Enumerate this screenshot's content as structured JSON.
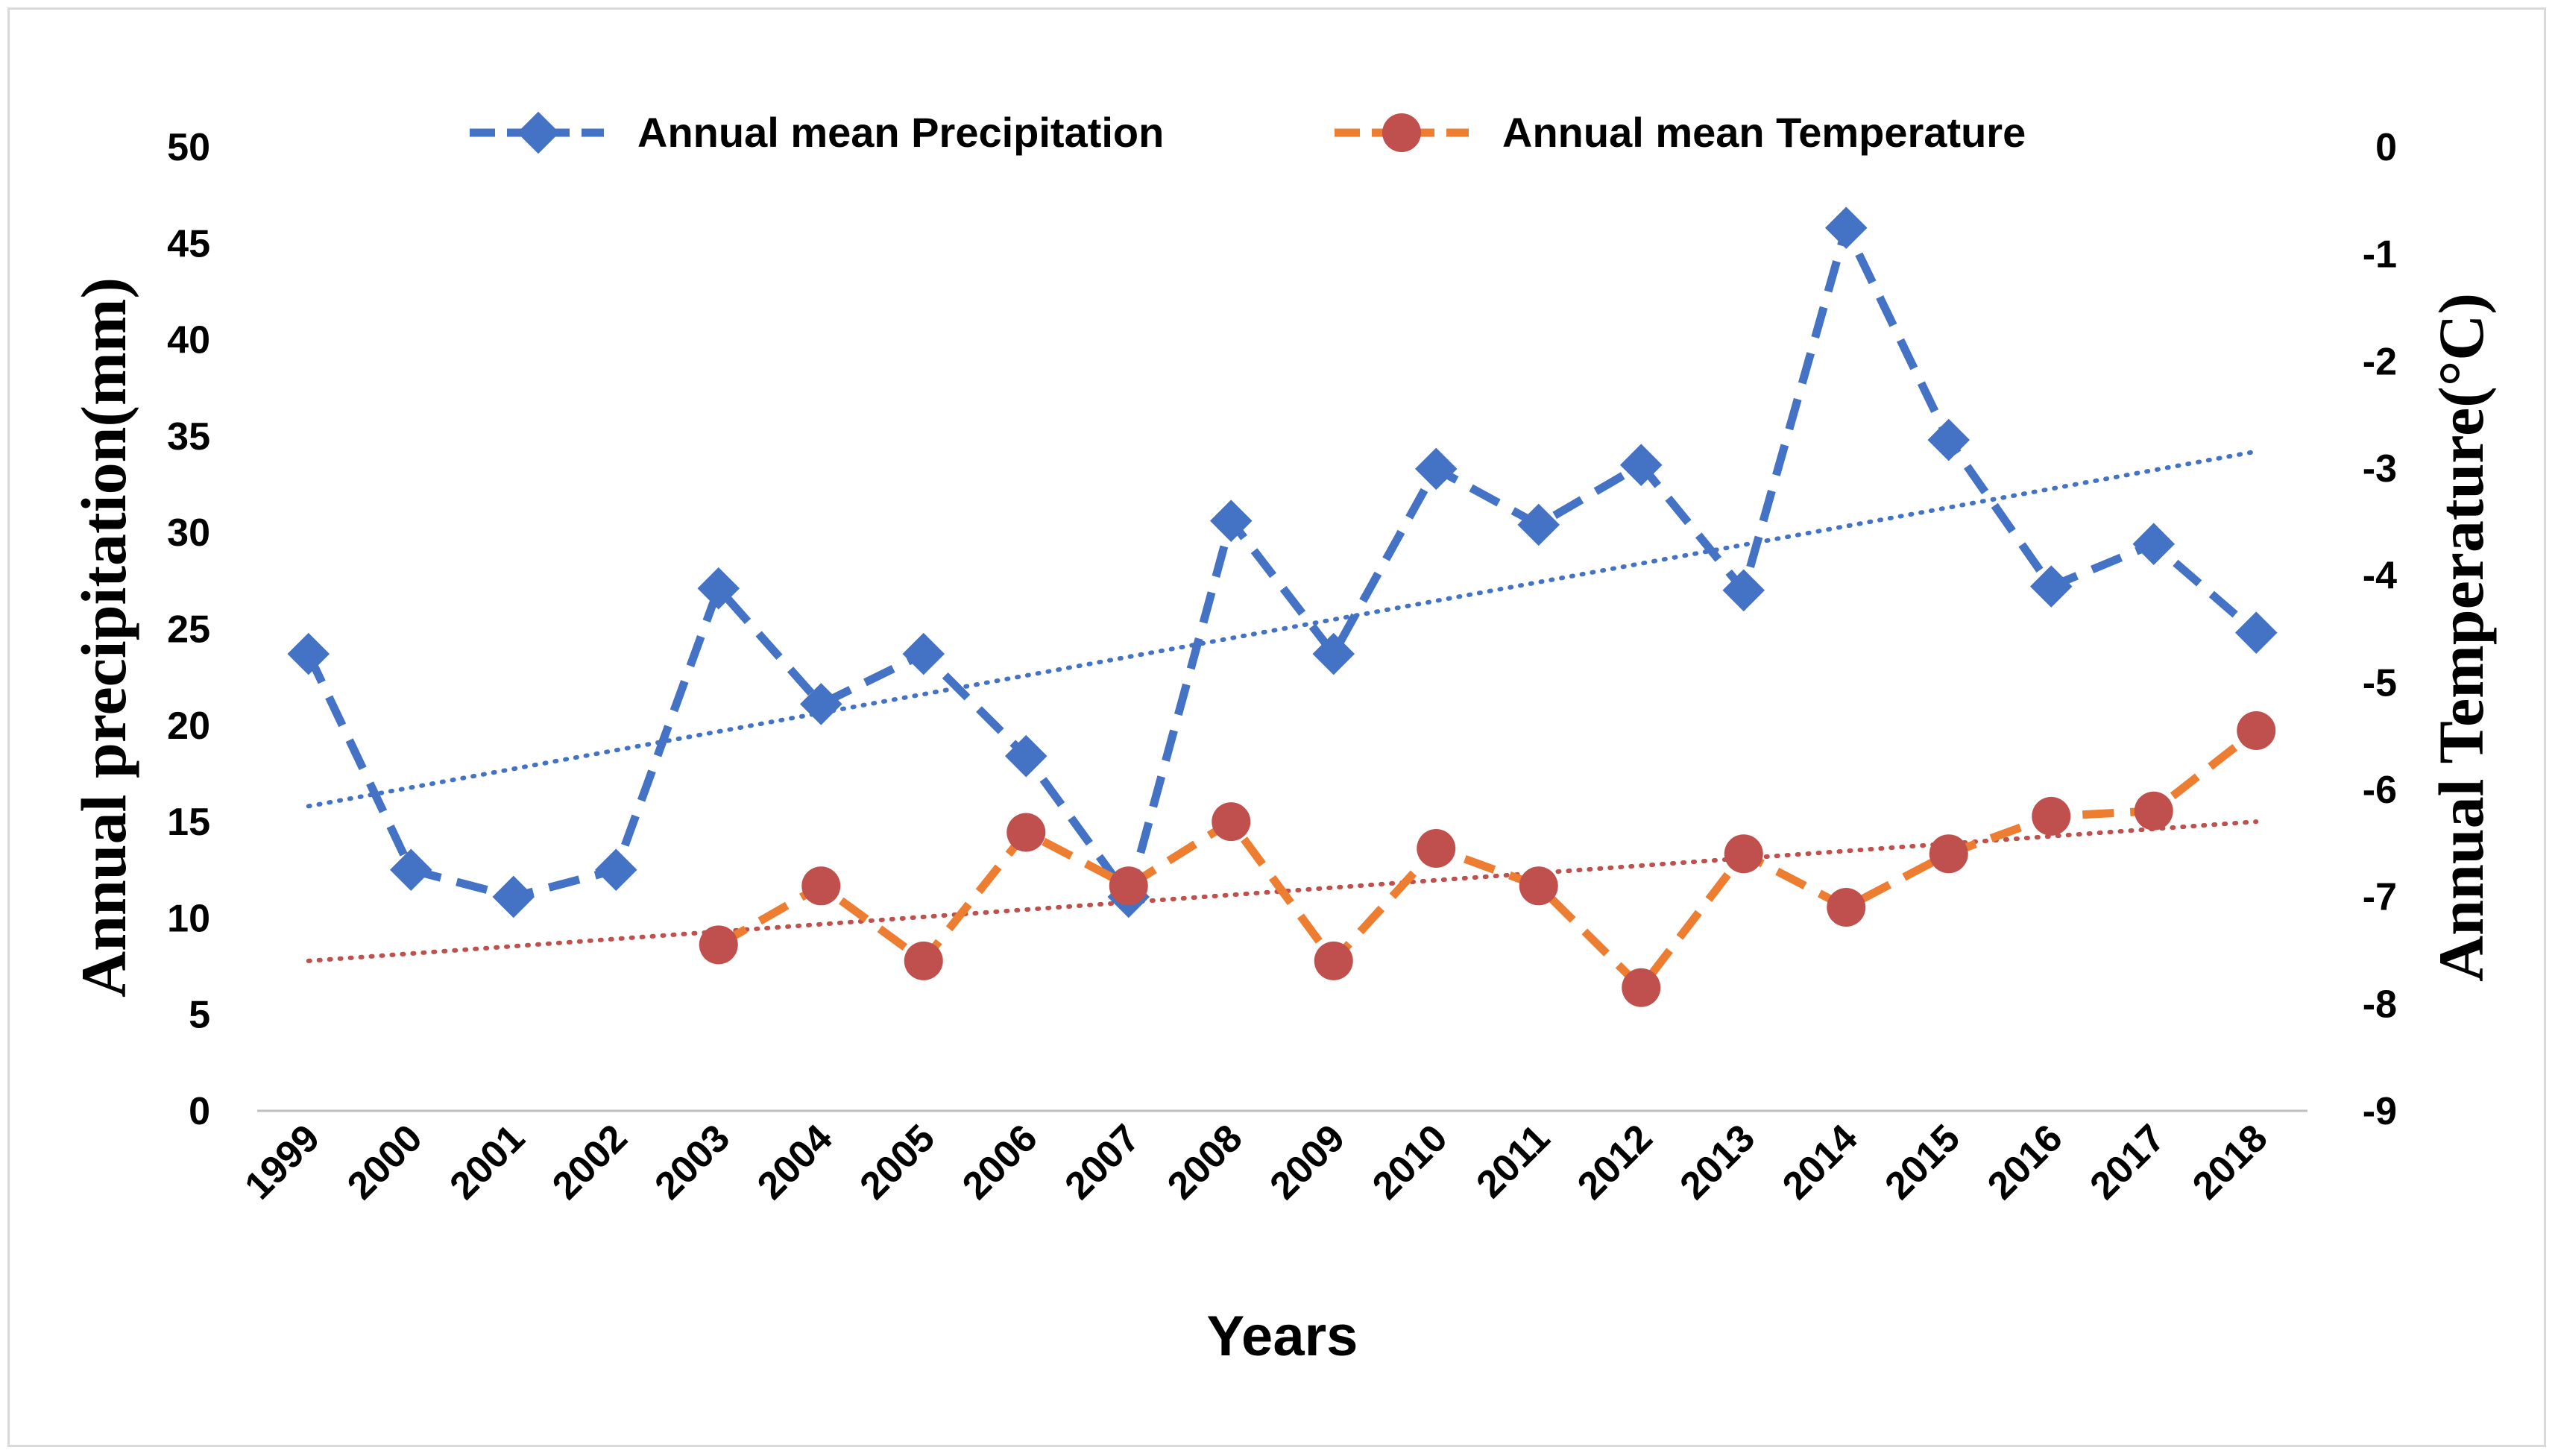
{
  "chart_data": {
    "type": "line",
    "title": "",
    "xlabel": "Years",
    "ylabel": "Annual precipitation(mm)",
    "y2label": "Annual Temperature(°C)",
    "ylim": [
      0,
      50
    ],
    "y2lim": [
      -9,
      0
    ],
    "yticks": [
      "0",
      "5",
      "10",
      "15",
      "20",
      "25",
      "30",
      "35",
      "40",
      "45",
      "50"
    ],
    "y2ticks": [
      "0",
      "-1",
      "-2",
      "-3",
      "-4",
      "-5",
      "-6",
      "-7",
      "-8",
      "-9"
    ],
    "categories": [
      "1999",
      "2000",
      "2001",
      "2002",
      "2003",
      "2004",
      "2005",
      "2006",
      "2007",
      "2008",
      "2009",
      "2010",
      "2011",
      "2012",
      "2013",
      "2014",
      "2015",
      "2016",
      "2017",
      "2018"
    ],
    "legend_position": "top-center",
    "series": [
      {
        "name": "Annual mean Precipitation",
        "axis": "left",
        "color": "#4472c4",
        "marker": "diamond",
        "values": [
          23.7,
          12.5,
          11.1,
          12.5,
          27.1,
          21.1,
          23.7,
          18.4,
          11.1,
          30.6,
          23.7,
          33.3,
          30.4,
          33.5,
          27.0,
          45.8,
          34.8,
          27.2,
          29.4,
          24.8
        ],
        "trend": {
          "color": "#4472c4",
          "start": 15.8,
          "end": 34.2
        }
      },
      {
        "name": "Annual mean Temperature",
        "axis": "right",
        "color": "#ed7d31",
        "marker_color": "#c0504d",
        "marker": "circle",
        "values": [
          null,
          null,
          null,
          null,
          -7.45,
          -6.9,
          -7.6,
          -6.4,
          -6.9,
          -6.3,
          -7.6,
          -6.55,
          -6.9,
          -7.85,
          -6.6,
          -7.1,
          -6.6,
          -6.25,
          -6.2,
          -5.45
        ],
        "trend": {
          "color": "#c0504d",
          "start": -7.6,
          "end": -6.3
        }
      }
    ]
  }
}
